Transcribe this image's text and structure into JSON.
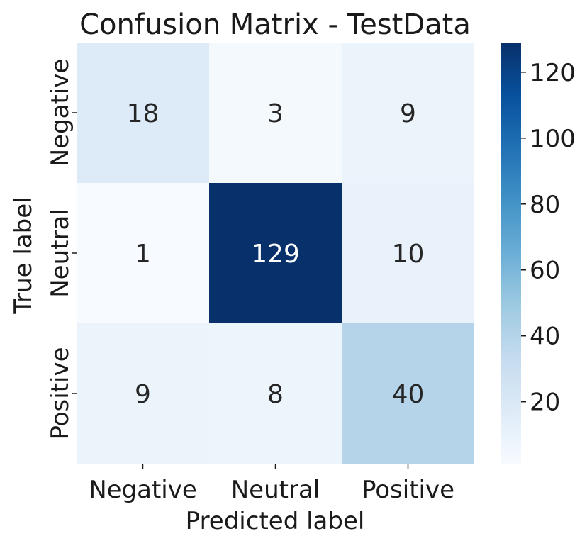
{
  "chart_data": {
    "type": "heatmap",
    "title": "Confusion Matrix - TestData",
    "xlabel": "Predicted label",
    "ylabel": "True label",
    "x_categories": [
      "Negative",
      "Neutral",
      "Positive"
    ],
    "y_categories": [
      "Negative",
      "Neutral",
      "Positive"
    ],
    "values": [
      [
        18,
        3,
        9
      ],
      [
        1,
        129,
        10
      ],
      [
        9,
        8,
        40
      ]
    ],
    "colormap": "Blues",
    "value_range": [
      1,
      129
    ],
    "colorbar_ticks": [
      20,
      40,
      60,
      80,
      100,
      120
    ],
    "colors": {
      "low": "#f7fbff",
      "high": "#08306b"
    }
  }
}
